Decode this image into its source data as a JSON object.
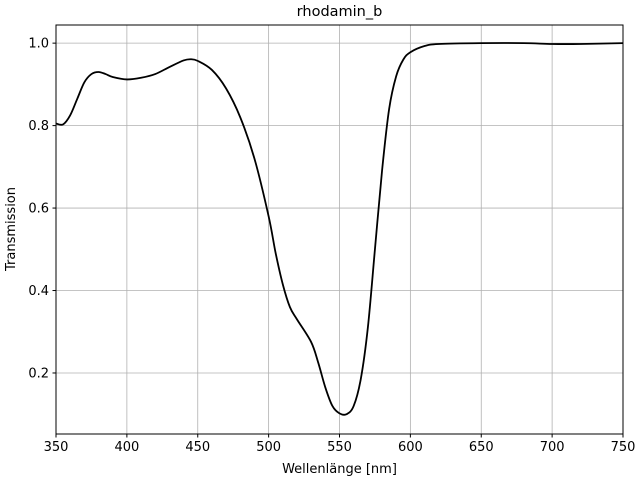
{
  "chart_data": {
    "type": "line",
    "title": "rhodamin_b",
    "xlabel": "Wellenlänge [nm]",
    "ylabel": "Transmission",
    "xlim": [
      350,
      750
    ],
    "ylim": [
      0.052,
      1.044
    ],
    "grid": true,
    "xticks": [
      350,
      400,
      450,
      500,
      550,
      600,
      650,
      700,
      750
    ],
    "xtick_labels": [
      "350",
      "400",
      "450",
      "500",
      "550",
      "600",
      "650",
      "700",
      "750"
    ],
    "yticks": [
      0.2,
      0.4,
      0.6,
      0.8,
      1.0
    ],
    "ytick_labels": [
      "0.2",
      "0.4",
      "0.6",
      "0.8",
      "1.0"
    ],
    "series": [
      {
        "color": "#000000",
        "x": [
          350,
          355,
          360,
          365,
          370,
          375,
          380,
          385,
          390,
          400,
          410,
          420,
          430,
          440,
          445,
          450,
          460,
          470,
          480,
          490,
          500,
          505,
          510,
          515,
          520,
          530,
          535,
          540,
          545,
          550,
          555,
          560,
          565,
          570,
          575,
          580,
          585,
          590,
          595,
          600,
          610,
          620,
          650,
          680,
          700,
          720,
          750
        ],
        "y": [
          0.805,
          0.803,
          0.825,
          0.865,
          0.905,
          0.925,
          0.93,
          0.925,
          0.918,
          0.912,
          0.916,
          0.925,
          0.942,
          0.958,
          0.961,
          0.957,
          0.935,
          0.89,
          0.82,
          0.72,
          0.58,
          0.49,
          0.415,
          0.36,
          0.33,
          0.275,
          0.225,
          0.165,
          0.12,
          0.102,
          0.1,
          0.12,
          0.185,
          0.31,
          0.5,
          0.69,
          0.84,
          0.92,
          0.96,
          0.978,
          0.993,
          0.998,
          1.0,
          1.0,
          0.998,
          0.998,
          1.0
        ]
      }
    ]
  }
}
